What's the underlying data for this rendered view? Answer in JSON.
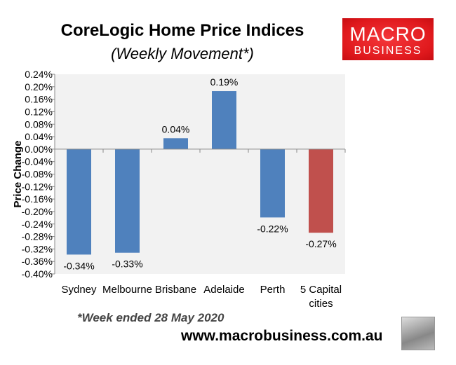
{
  "header": {
    "title": "CoreLogic Home Price Indices",
    "subtitle": "(Weekly Movement*)"
  },
  "logo": {
    "line1": "MACRO",
    "line2": "BUSINESS"
  },
  "footer": {
    "note": "*Week ended 28 May 2020",
    "url": "www.macrobusiness.com.au"
  },
  "chart_data": {
    "type": "bar",
    "title": "CoreLogic Home Price Indices",
    "subtitle": "(Weekly Movement*)",
    "xlabel": "",
    "ylabel": "Price Change",
    "ylim": [
      -0.4,
      0.24
    ],
    "yticks": [
      0.24,
      0.2,
      0.16,
      0.12,
      0.08,
      0.04,
      0.0,
      -0.04,
      -0.08,
      -0.12,
      -0.16,
      -0.2,
      -0.24,
      -0.28,
      -0.32,
      -0.36,
      -0.4
    ],
    "categories": [
      "Sydney",
      "Melbourne",
      "Brisbane",
      "Adelaide",
      "Perth",
      "5 Capital cities"
    ],
    "values": [
      -0.338,
      -0.332,
      0.035,
      0.186,
      -0.219,
      -0.268
    ],
    "data_labels": [
      "-0.34%",
      "-0.33%",
      "0.04%",
      "0.19%",
      "-0.22%",
      "-0.27%"
    ],
    "colors": [
      "#4f81bd",
      "#4f81bd",
      "#4f81bd",
      "#4f81bd",
      "#4f81bd",
      "#c0504d"
    ],
    "grid": false,
    "plot_background": "#f2f2f2"
  }
}
